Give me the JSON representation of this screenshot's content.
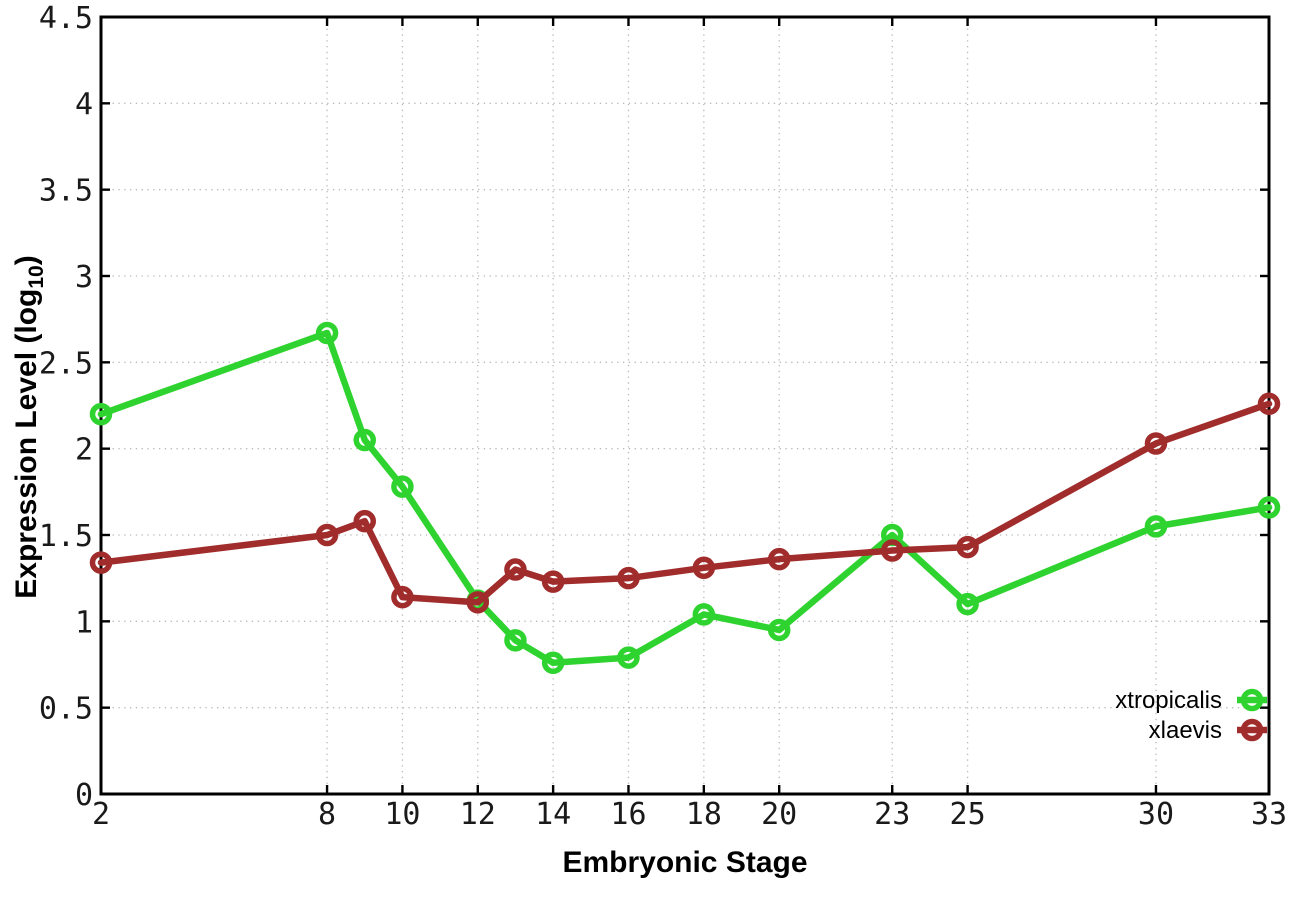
{
  "figure": {
    "background": "#ffffff",
    "border_color": "#000000",
    "grid_color": "#b8b8b8",
    "tick_label_color": "#1a1a1a",
    "xlabel": "Embryonic Stage",
    "ylabel_prefix": "Expression Level (log",
    "ylabel_sub": "10",
    "ylabel_suffix": ")"
  },
  "chart_data": {
    "type": "line",
    "title": "",
    "xlabel": "Embryonic Stage",
    "ylabel": "Expression Level (log10)",
    "x": [
      2,
      8,
      9,
      10,
      12,
      13,
      14,
      16,
      18,
      20,
      23,
      25,
      30,
      33
    ],
    "series": [
      {
        "name": "xtropicalis",
        "color": "#2fd32f",
        "values": [
          2.2,
          2.67,
          2.05,
          1.78,
          1.12,
          0.89,
          0.76,
          0.79,
          1.04,
          0.95,
          1.5,
          1.1,
          1.55,
          1.66
        ]
      },
      {
        "name": "xlaevis",
        "color": "#a12c2c",
        "values": [
          1.34,
          1.5,
          1.58,
          1.14,
          1.11,
          1.3,
          1.23,
          1.25,
          1.31,
          1.36,
          1.41,
          1.43,
          2.03,
          2.26
        ]
      }
    ],
    "xlim": [
      2,
      33
    ],
    "ylim": [
      0,
      4.5
    ],
    "xticks": [
      2,
      8,
      10,
      12,
      14,
      16,
      18,
      20,
      23,
      25,
      30,
      33
    ],
    "yticks": [
      0,
      0.5,
      1,
      1.5,
      2,
      2.5,
      3,
      3.5,
      4,
      4.5
    ],
    "grid": true,
    "legend_position": "inside-bottom-right"
  }
}
